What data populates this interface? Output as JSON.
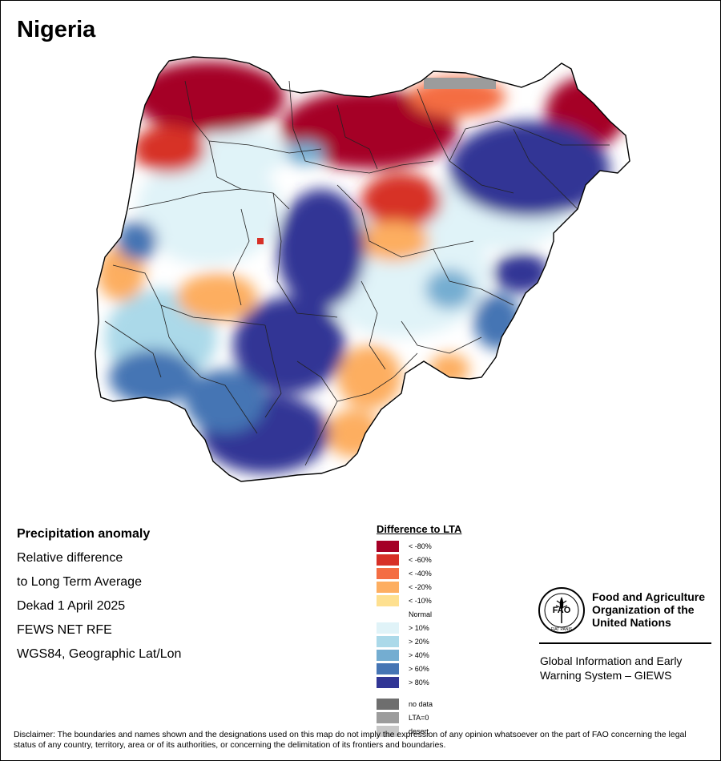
{
  "title": "Nigeria",
  "info": {
    "heading": "Precipitation anomaly",
    "line1": "Relative difference",
    "line2": "to Long Term Average",
    "period": "Dekad 1 April 2025",
    "source": "FEWS NET RFE",
    "projection": "WGS84, Geographic Lat/Lon"
  },
  "legend": {
    "title": "Difference to LTA",
    "classes": [
      {
        "label": "< -80%",
        "color": "#a50026"
      },
      {
        "label": "< -60%",
        "color": "#d73027"
      },
      {
        "label": "< -40%",
        "color": "#f46d43"
      },
      {
        "label": "< -20%",
        "color": "#fdae61"
      },
      {
        "label": "< -10%",
        "color": "#fee090"
      },
      {
        "label": "Normal",
        "color": "#ffffff"
      },
      {
        "label": "> 10%",
        "color": "#e0f3f8"
      },
      {
        "label": "> 20%",
        "color": "#abd9e9"
      },
      {
        "label": "> 40%",
        "color": "#74add1"
      },
      {
        "label": "> 60%",
        "color": "#4575b4"
      },
      {
        "label": "> 80%",
        "color": "#313695"
      },
      {
        "label": "no data",
        "color": "#6e6e6e"
      },
      {
        "label": "LTA=0",
        "color": "#9c9c9c"
      },
      {
        "label": "desert",
        "color": "#c8c8c8"
      }
    ]
  },
  "fao": {
    "logo_text": "FAO",
    "motto": "FIAT PANIS",
    "name": "Food and Agriculture Organization of the United Nations",
    "system": "Global Information and Early Warning System – GIEWS"
  },
  "disclaimer": "Disclaimer: The boundaries and names shown and the designations used on this map do not imply the expression of any opinion whatsoever on the part of FAO concerning the legal status of any country, territory, area or of its authorities, or concerning the delimitation of its frontiers and boundaries."
}
